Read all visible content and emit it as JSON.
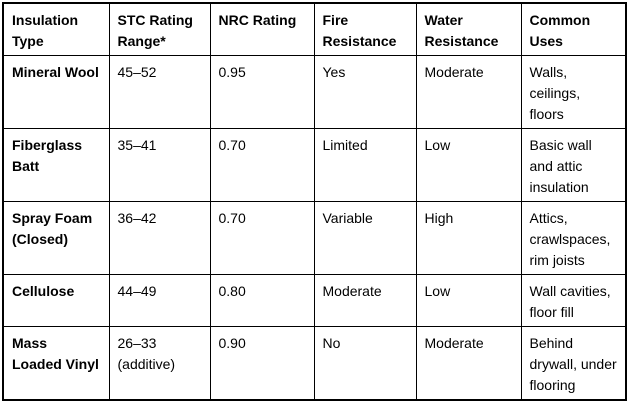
{
  "colors": {
    "background": "#ffffff",
    "border": "#000000",
    "text": "#000000"
  },
  "table": {
    "columns": [
      "Insulation Type",
      "STC Rating Range*",
      "NRC Rating",
      "Fire Resistance",
      "Water Resistance",
      "Common Uses"
    ],
    "rows": [
      {
        "type": "Mineral Wool",
        "stc": "45–52",
        "nrc": "0.95",
        "fire": "Yes",
        "water": "Moderate",
        "uses": "Walls, ceilings, floors"
      },
      {
        "type": "Fiberglass Batt",
        "stc": "35–41",
        "nrc": "0.70",
        "fire": "Limited",
        "water": "Low",
        "uses": "Basic wall and attic insulation"
      },
      {
        "type": "Spray Foam (Closed)",
        "stc": "36–42",
        "nrc": "0.70",
        "fire": "Variable",
        "water": "High",
        "uses": "Attics, crawlspaces, rim joists"
      },
      {
        "type": "Cellulose",
        "stc": "44–49",
        "nrc": "0.80",
        "fire": "Moderate",
        "water": "Low",
        "uses": "Wall cavities, floor fill"
      },
      {
        "type": "Mass Loaded Vinyl",
        "stc": "26–33 (additive)",
        "nrc": "0.90",
        "fire": "No",
        "water": "Moderate",
        "uses": "Behind drywall, under flooring"
      }
    ]
  }
}
